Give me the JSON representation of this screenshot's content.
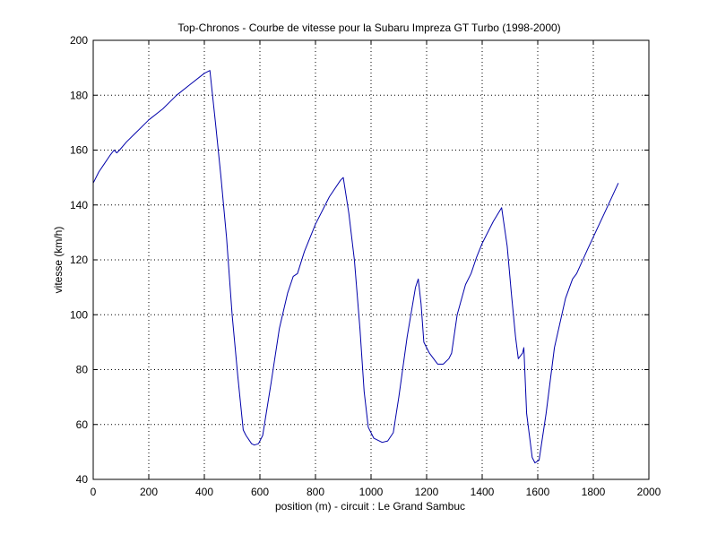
{
  "chart_data": {
    "type": "line",
    "title": "Top-Chronos - Courbe de vitesse pour la Subaru Impreza GT Turbo (1998-2000)",
    "xlabel": "position (m) - circuit : Le Grand Sambuc",
    "ylabel": "vitesse (km/h)",
    "xlim": [
      0,
      2000
    ],
    "ylim": [
      40,
      200
    ],
    "xticks": [
      0,
      200,
      400,
      600,
      800,
      1000,
      1200,
      1400,
      1600,
      1800,
      2000
    ],
    "yticks": [
      40,
      60,
      80,
      100,
      120,
      140,
      160,
      180,
      200
    ],
    "grid": true,
    "line_color": "#0000aa",
    "series": [
      {
        "x": [
          0,
          20,
          40,
          60,
          75,
          85,
          95,
          120,
          160,
          200,
          250,
          300,
          350,
          400,
          420,
          440,
          460,
          480,
          500,
          520,
          540,
          550,
          570,
          580,
          595,
          610,
          640,
          670,
          700,
          720,
          735,
          760,
          800,
          850,
          890,
          900,
          920,
          940,
          960,
          975,
          990,
          1010,
          1040,
          1060,
          1080,
          1100,
          1130,
          1160,
          1170,
          1180,
          1190,
          1210,
          1240,
          1260,
          1280,
          1290,
          1310,
          1340,
          1360,
          1380,
          1400,
          1440,
          1470,
          1490,
          1505,
          1520,
          1530,
          1545,
          1550,
          1560,
          1580,
          1590,
          1605,
          1630,
          1660,
          1700,
          1725,
          1740,
          1780,
          1840,
          1890
        ],
        "y": [
          148,
          152,
          155,
          158,
          160,
          159,
          160,
          163,
          167,
          171,
          175,
          180,
          184,
          188,
          189,
          170,
          150,
          128,
          100,
          78,
          58,
          56,
          53,
          52.5,
          53,
          56,
          75,
          95,
          108,
          114,
          115,
          123,
          133,
          143,
          149,
          150,
          137,
          120,
          95,
          72,
          59,
          55,
          53.5,
          54,
          57,
          70,
          92,
          110,
          113,
          104,
          90,
          86,
          82,
          82,
          84,
          86,
          100,
          111,
          115,
          121,
          126,
          134,
          139,
          125,
          108,
          92,
          84,
          86,
          88,
          64,
          48,
          46,
          47,
          64,
          88,
          106,
          113,
          115,
          124,
          137,
          148
        ]
      }
    ]
  }
}
